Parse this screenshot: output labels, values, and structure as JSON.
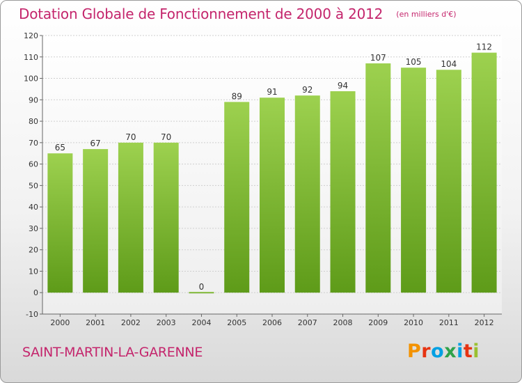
{
  "header": {
    "title": "Dotation Globale de Fonctionnement de 2000 à 2012",
    "subtitle": "(en milliers d'€)"
  },
  "footer": {
    "commune": "SAINT-MARTIN-LA-GARENNE",
    "logo_text": "Proxiti",
    "logo_colors": [
      "#f39200",
      "#e63312",
      "#00a0e3",
      "#2fa24a",
      "#00a0e3",
      "#e63312",
      "#9ac031"
    ]
  },
  "colors": {
    "title": "#c4256c",
    "bar_top": "#9dd14f",
    "bar_bottom": "#5e9b19",
    "grid": "#cfcfcf"
  },
  "chart_data": {
    "type": "bar",
    "title": "Dotation Globale de Fonctionnement de 2000 à 2012",
    "subtitle": "(en milliers d'€)",
    "categories": [
      "2000",
      "2001",
      "2002",
      "2003",
      "2004",
      "2005",
      "2006",
      "2007",
      "2008",
      "2009",
      "2010",
      "2011",
      "2012"
    ],
    "values": [
      65,
      67,
      70,
      70,
      0,
      89,
      91,
      92,
      94,
      107,
      105,
      104,
      112
    ],
    "data_labels": [
      "65",
      "67",
      "70",
      "70",
      "0",
      "89",
      "91",
      "92",
      "94",
      "107",
      "105",
      "104",
      "112"
    ],
    "ylim": [
      -10,
      120
    ],
    "yticks": [
      -10,
      0,
      10,
      20,
      30,
      40,
      50,
      60,
      70,
      80,
      90,
      100,
      110,
      120
    ],
    "grid": true,
    "legend": "none"
  }
}
